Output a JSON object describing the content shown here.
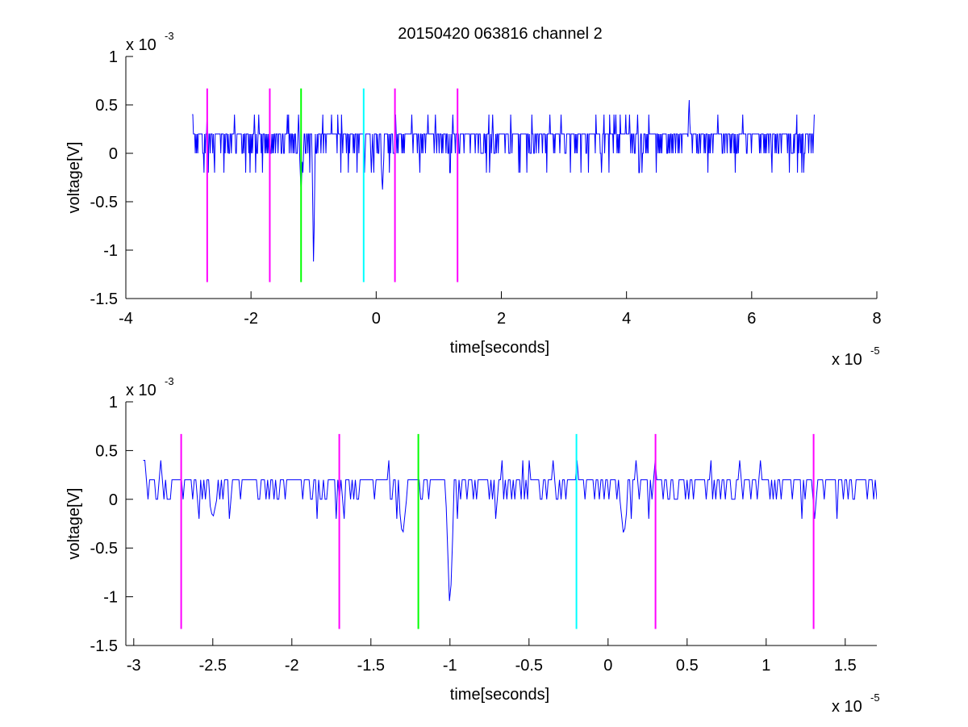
{
  "figure": {
    "title": "20150420 063816 channel 2"
  },
  "chart_data": [
    {
      "type": "line",
      "title": "20150420 063816 channel 2",
      "xlabel": "time[seconds]",
      "ylabel": "voltage[V]",
      "x_exponent": {
        "base": "x 10",
        "sup": "-5"
      },
      "y_exponent": {
        "base": "x 10",
        "sup": "-3"
      },
      "xlim": [
        -4,
        8
      ],
      "ylim": [
        -1.5,
        1
      ],
      "x_ticks": [
        -4,
        -2,
        0,
        2,
        4,
        6,
        8
      ],
      "x_tick_labels": [
        "-4",
        "-2",
        "0",
        "2",
        "4",
        "6",
        "8"
      ],
      "y_ticks": [
        -1.5,
        -1,
        -0.5,
        0,
        0.5,
        1
      ],
      "y_tick_labels": [
        "-1.5",
        "-1",
        "-0.5",
        "0",
        "0.5",
        "1"
      ],
      "grid": false,
      "signal": {
        "color": "#0000ff",
        "x_start": -2.94,
        "x_end": 7.0,
        "baseline_levels": [
          0,
          0.2
        ],
        "spikes": [
          {
            "x": -1.2,
            "y": -0.4
          },
          {
            "x": -1.0,
            "y": -1.2
          },
          {
            "x": 0.1,
            "y": -0.4
          },
          {
            "x": 5.0,
            "y": 0.6
          }
        ]
      },
      "markers": [
        {
          "x": -2.7,
          "color": "#ff00ff"
        },
        {
          "x": -1.7,
          "color": "#ff00ff"
        },
        {
          "x": -1.2,
          "color": "#00ff00"
        },
        {
          "x": -0.2,
          "color": "#00ffff"
        },
        {
          "x": 0.3,
          "color": "#ff00ff"
        },
        {
          "x": 1.3,
          "color": "#ff00ff"
        }
      ],
      "marker_range": [
        -1.33,
        0.67
      ]
    },
    {
      "type": "line",
      "title": "",
      "xlabel": "time[seconds]",
      "ylabel": "voltage[V]",
      "x_exponent": {
        "base": "x 10",
        "sup": "-5"
      },
      "y_exponent": {
        "base": "x 10",
        "sup": "-3"
      },
      "xlim": [
        -3.05,
        1.7
      ],
      "ylim": [
        -1.5,
        1
      ],
      "x_ticks": [
        -3,
        -2.5,
        -2,
        -1.5,
        -1,
        -0.5,
        0,
        0.5,
        1,
        1.5
      ],
      "x_tick_labels": [
        "-3",
        "-2.5",
        "-2",
        "-1.5",
        "-1",
        "-0.5",
        "0",
        "0.5",
        "1",
        "1.5"
      ],
      "y_ticks": [
        -1.5,
        -1,
        -0.5,
        0,
        0.5,
        1
      ],
      "y_tick_labels": [
        "-1.5",
        "-1",
        "-0.5",
        "0",
        "0.5",
        "1"
      ],
      "grid": false,
      "signal": {
        "color": "#0000ff",
        "x_start": -2.94,
        "x_end": 1.7,
        "baseline_levels": [
          0,
          0.2
        ],
        "spikes": [
          {
            "x": -2.5,
            "y": -0.2
          },
          {
            "x": -1.3,
            "y": -0.4
          },
          {
            "x": -1.0,
            "y": -1.2
          },
          {
            "x": 0.1,
            "y": -0.4
          }
        ]
      },
      "markers": [
        {
          "x": -2.7,
          "color": "#ff00ff"
        },
        {
          "x": -1.7,
          "color": "#ff00ff"
        },
        {
          "x": -1.2,
          "color": "#00ff00"
        },
        {
          "x": -0.2,
          "color": "#00ffff"
        },
        {
          "x": 0.3,
          "color": "#ff00ff"
        },
        {
          "x": 1.3,
          "color": "#ff00ff"
        }
      ],
      "marker_range": [
        -1.33,
        0.67
      ]
    }
  ]
}
